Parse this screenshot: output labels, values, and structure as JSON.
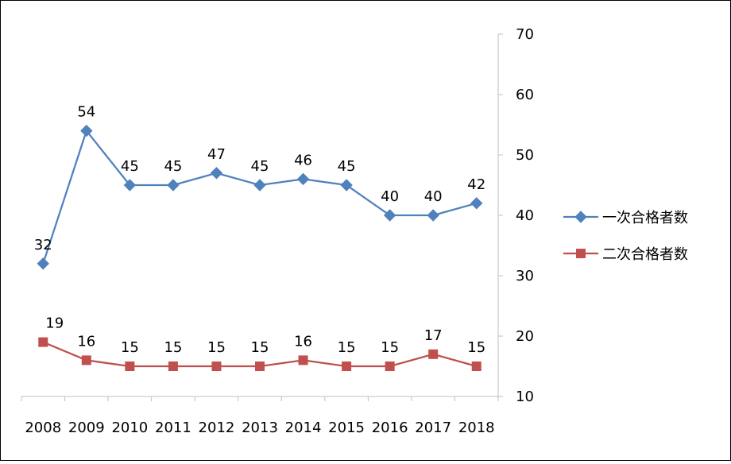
{
  "chart_data": {
    "type": "line",
    "title": "",
    "xlabel": "",
    "ylabel": "",
    "categories": [
      "2008",
      "2009",
      "2010",
      "2011",
      "2012",
      "2013",
      "2014",
      "2015",
      "2016",
      "2017",
      "2018"
    ],
    "series": [
      {
        "name": "一次合格者数",
        "marker": "diamond",
        "color": "#4F81BD",
        "values": [
          32,
          54,
          45,
          45,
          47,
          45,
          46,
          45,
          40,
          40,
          42
        ]
      },
      {
        "name": "二次合格者数",
        "marker": "square",
        "color": "#C0504D",
        "values": [
          19,
          16,
          15,
          15,
          15,
          15,
          16,
          15,
          15,
          17,
          15
        ]
      }
    ],
    "y_axis": {
      "side": "right",
      "ylim": [
        10,
        70
      ],
      "ticks": [
        10,
        20,
        30,
        40,
        50,
        60,
        70
      ]
    },
    "grid": false,
    "legend_position": "right",
    "data_labels": true
  }
}
